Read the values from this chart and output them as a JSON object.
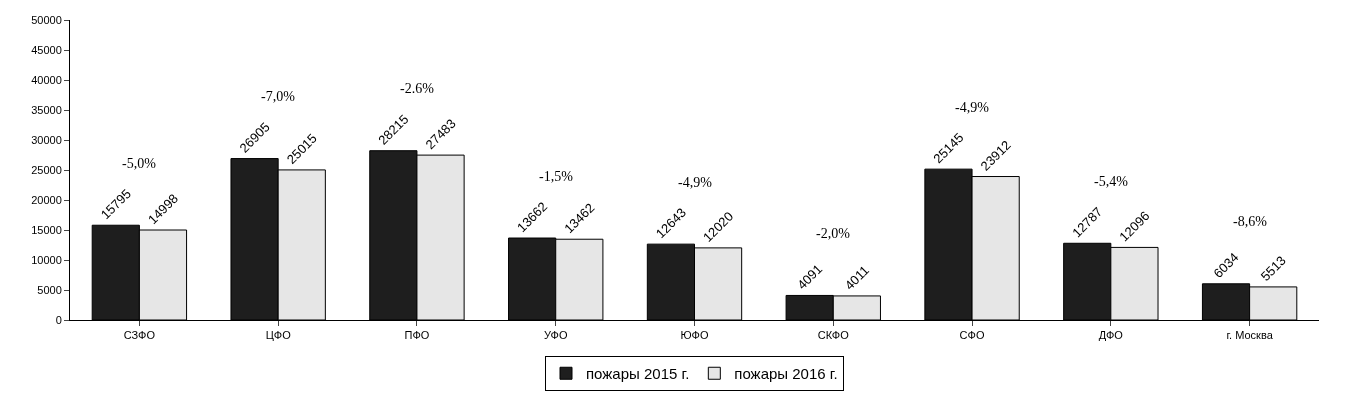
{
  "chart_data": {
    "type": "bar",
    "categories": [
      "СЗФО",
      "ЦФО",
      "ПФО",
      "УФО",
      "ЮФО",
      "СКФО",
      "СФО",
      "ДФО",
      "г. Москва"
    ],
    "series": [
      {
        "name": "пожары 2015 г.",
        "color": "#1e1e1e",
        "values": [
          15795,
          26905,
          28215,
          13662,
          12643,
          4091,
          25145,
          12787,
          6034
        ]
      },
      {
        "name": "пожары 2016 г.",
        "color": "#e6e6e6",
        "values": [
          14998,
          25015,
          27483,
          13462,
          12020,
          4011,
          23912,
          12096,
          5513
        ]
      }
    ],
    "annotations": [
      "-5,0%",
      "-7,0%",
      "-2.6%",
      "-1,5%",
      "-4,9%",
      "-2,0%",
      "-4,9%",
      "-5,4%",
      "-8,6%"
    ],
    "ylim": [
      0,
      50000
    ],
    "yticks": [
      0,
      5000,
      10000,
      15000,
      20000,
      25000,
      30000,
      35000,
      40000,
      45000,
      50000
    ],
    "data_labels": true,
    "grid": false,
    "legend": "bottom"
  }
}
